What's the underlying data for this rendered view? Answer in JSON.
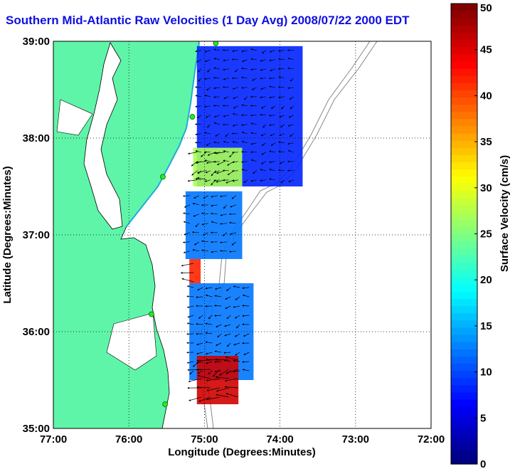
{
  "chart_data": {
    "type": "heatmap",
    "title": "Southern Mid-Atlantic Raw Velocities (1 Day Avg) 2008/07/22 2000 EDT",
    "xlabel": "Longitude (Degrees:Minutes)",
    "ylabel": "Latitude (Degrees:Minutes)",
    "x_ticks": [
      "77:00",
      "76:00",
      "75:00",
      "74:00",
      "73:00",
      "72:00"
    ],
    "y_ticks": [
      "39:00",
      "38:00",
      "37:00",
      "36:00",
      "35:00"
    ],
    "xlim": [
      -77,
      -72
    ],
    "ylim": [
      35,
      39
    ],
    "grid": true,
    "colorbar": {
      "label": "Surface Velocity (cm/s)",
      "range": [
        0,
        50
      ],
      "ticks": [
        "0",
        "5",
        "10",
        "15",
        "20",
        "25",
        "30",
        "35",
        "40",
        "45",
        "50"
      ],
      "colormap": "jet"
    },
    "stations": [
      {
        "lon": -74.85,
        "lat": 38.98
      },
      {
        "lon": -75.16,
        "lat": 38.22
      },
      {
        "lon": -75.55,
        "lat": 37.6
      },
      {
        "lon": -75.7,
        "lat": 36.18
      },
      {
        "lon": -75.52,
        "lat": 35.25
      }
    ],
    "velocity_regions": [
      {
        "lon": [
          -75.1,
          -73.7
        ],
        "lat": [
          37.5,
          38.95
        ],
        "speed": 8
      },
      {
        "lon": [
          -75.15,
          -74.5
        ],
        "lat": [
          37.5,
          37.9
        ],
        "speed": 27
      },
      {
        "lon": [
          -75.25,
          -74.5
        ],
        "lat": [
          36.75,
          37.45
        ],
        "speed": 12
      },
      {
        "lon": [
          -75.2,
          -75.05
        ],
        "lat": [
          36.5,
          36.75
        ],
        "speed": 42
      },
      {
        "lon": [
          -75.2,
          -74.35
        ],
        "lat": [
          35.5,
          36.5
        ],
        "speed": 12
      },
      {
        "lon": [
          -75.1,
          -74.55
        ],
        "lat": [
          35.25,
          35.75
        ],
        "speed": 46
      }
    ]
  }
}
